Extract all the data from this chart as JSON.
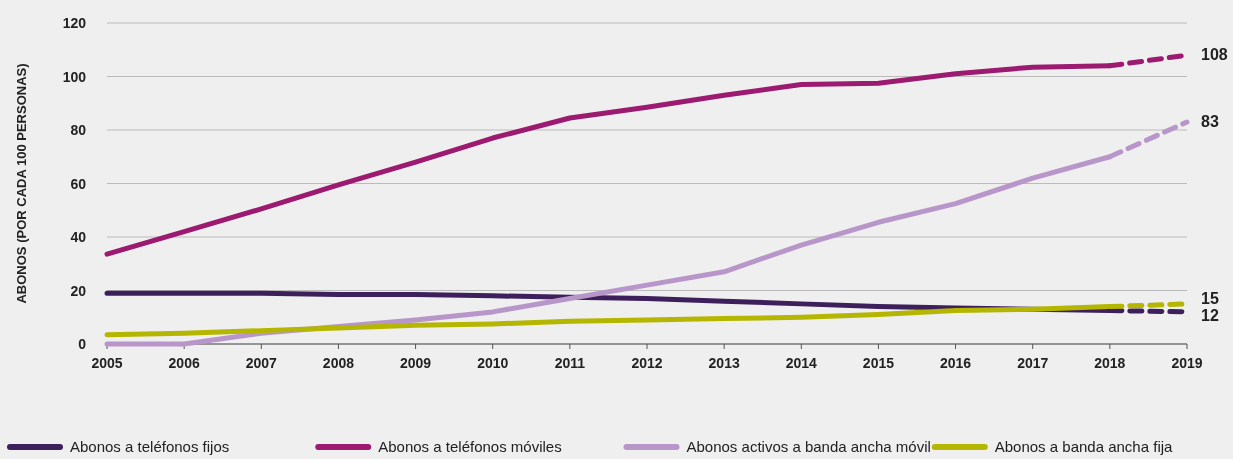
{
  "chart_data": {
    "type": "line",
    "ylabel": "ABONOS (POR CADA 100 PERSONAS)",
    "x": [
      2005,
      2006,
      2007,
      2008,
      2009,
      2010,
      2011,
      2012,
      2013,
      2014,
      2015,
      2016,
      2017,
      2018,
      2019
    ],
    "xlim": [
      2005,
      2019
    ],
    "xticks": [
      2005,
      2006,
      2007,
      2008,
      2009,
      2010,
      2011,
      2012,
      2013,
      2014,
      2015,
      2016,
      2017,
      2018,
      2019
    ],
    "ylim": [
      0,
      120
    ],
    "yticks": [
      0,
      20,
      40,
      60,
      80,
      100,
      120
    ],
    "grid": "y",
    "legend": "bottom",
    "line_style": "solid",
    "marker": "none",
    "series": [
      {
        "name": "Abonos a teléfonos fijos",
        "color": "#3d1f5c",
        "values": [
          19,
          19,
          19,
          18.5,
          18.5,
          18,
          17.5,
          17,
          16,
          15,
          14,
          13.5,
          13,
          12.5,
          null
        ]
      },
      {
        "name": "Abonos a teléfonos móviles",
        "color": "#9c1a6f",
        "values": [
          33.6,
          42,
          50.5,
          59.5,
          68,
          77,
          84.5,
          88.5,
          93,
          97,
          97.5,
          101,
          103.5,
          104,
          null
        ]
      },
      {
        "name": "Abonos activos a banda ancha móvil",
        "color": "#b996c9",
        "values": [
          0,
          0,
          4,
          6.5,
          9,
          12,
          17,
          22,
          27,
          37,
          45.5,
          52.5,
          62,
          70,
          null
        ]
      },
      {
        "name": "Abonos a banda ancha fija",
        "color": "#b4b600",
        "values": [
          3.5,
          4,
          5,
          6,
          7,
          7.5,
          8.5,
          9,
          9.5,
          10,
          11,
          12.5,
          13,
          14,
          null
        ]
      },
      {
        "color": "#3d1f5c",
        "values": [
          null,
          null,
          null,
          null,
          null,
          null,
          null,
          null,
          null,
          null,
          null,
          null,
          null,
          12.5,
          12
        ],
        "value_labels": [
          null,
          null,
          null,
          null,
          null,
          null,
          null,
          null,
          null,
          null,
          null,
          null,
          null,
          null,
          "12"
        ],
        "line_style": "dashed"
      },
      {
        "color": "#9c1a6f",
        "values": [
          null,
          null,
          null,
          null,
          null,
          null,
          null,
          null,
          null,
          null,
          null,
          null,
          null,
          104,
          108
        ],
        "value_labels": [
          null,
          null,
          null,
          null,
          null,
          null,
          null,
          null,
          null,
          null,
          null,
          null,
          null,
          null,
          "108"
        ],
        "line_style": "dashed"
      },
      {
        "color": "#b996c9",
        "values": [
          null,
          null,
          null,
          null,
          null,
          null,
          null,
          null,
          null,
          null,
          null,
          null,
          null,
          70,
          83
        ],
        "value_labels": [
          null,
          null,
          null,
          null,
          null,
          null,
          null,
          null,
          null,
          null,
          null,
          null,
          null,
          null,
          "83"
        ],
        "line_style": "dashed"
      },
      {
        "color": "#b4b600",
        "values": [
          null,
          null,
          null,
          null,
          null,
          null,
          null,
          null,
          null,
          null,
          null,
          null,
          null,
          14,
          15
        ],
        "value_labels": [
          null,
          null,
          null,
          null,
          null,
          null,
          null,
          null,
          null,
          null,
          null,
          null,
          null,
          null,
          "15"
        ],
        "line_style": "dashed"
      }
    ]
  }
}
